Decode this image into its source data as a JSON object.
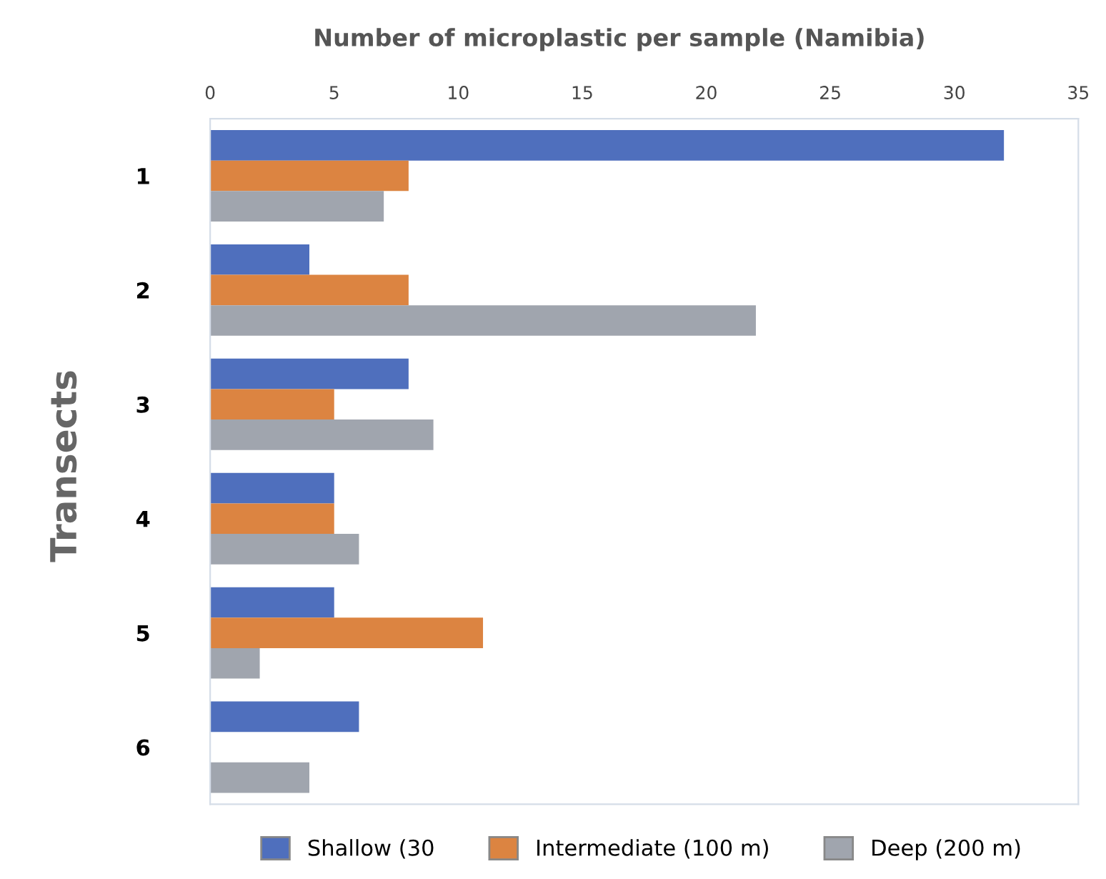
{
  "chart_data": {
    "type": "bar",
    "orientation": "horizontal",
    "title": "Number of microplastic per sample (Namibia)",
    "ylabel": "Transects",
    "categories": [
      "1",
      "2",
      "3",
      "4",
      "5",
      "6"
    ],
    "series": [
      {
        "name": "Shallow (30",
        "color": "#4f6fbd",
        "values": [
          32,
          4,
          8,
          5,
          5,
          6
        ]
      },
      {
        "name": "Intermediate (100 m)",
        "color": "#dc8441",
        "values": [
          8,
          8,
          5,
          5,
          11,
          0
        ]
      },
      {
        "name": "Deep (200 m)",
        "color": "#a0a5ae",
        "values": [
          7,
          22,
          9,
          6,
          2,
          4
        ]
      }
    ],
    "xlim": [
      0,
      35
    ],
    "xticks": [
      0,
      5,
      10,
      15,
      20,
      25,
      30,
      35
    ],
    "grid": false,
    "legend": "bottom"
  }
}
